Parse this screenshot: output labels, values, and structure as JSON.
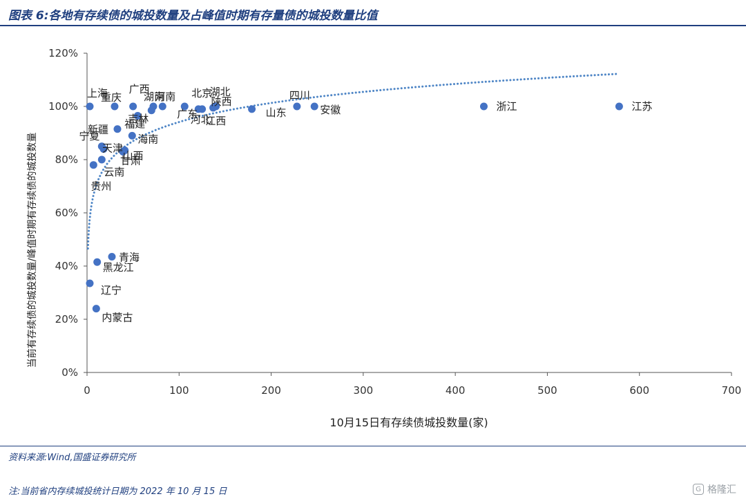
{
  "figure": {
    "title": "图表 6:各地有存续债的城投数量及占峰值时期有存量债的城投数量比值",
    "source": "资料来源:Wind,国盛证券研究所",
    "note": "注:当前省内存续城投统计日期为 2022 年 10 月 15 日",
    "watermark": "格隆汇"
  },
  "colors": {
    "marker": "#4472C4",
    "trend": "#4F86C6",
    "accent": "#1f3f7f"
  },
  "icons": {
    "watermark": "gelonghui-logo-icon"
  },
  "chart_data": {
    "type": "scatter",
    "xlabel": "10月15日有存续债城投数量(家)",
    "ylabel": "当前有存续债的城投数量/峰值时期有存续债的城投数量",
    "xlim": [
      0,
      700
    ],
    "ylim": [
      0,
      1.2
    ],
    "x_ticks": [
      "0",
      "100",
      "200",
      "300",
      "400",
      "500",
      "600",
      "700"
    ],
    "y_ticks": [
      "0%",
      "20%",
      "40%",
      "60%",
      "80%",
      "100%",
      "120%"
    ],
    "grid": false,
    "legend": "none",
    "trendline": {
      "style": "dotted",
      "kind": "logarithmic",
      "x_range": [
        1,
        578
      ]
    },
    "points": [
      {
        "label": "上海",
        "x": 3,
        "y": 1.0
      },
      {
        "label": "重庆",
        "x": 30,
        "y": 1.0
      },
      {
        "label": "广西",
        "x": 50,
        "y": 1.0
      },
      {
        "label": "湖南",
        "x": 72,
        "y": 1.0
      },
      {
        "label": "河南",
        "x": 82,
        "y": 1.0
      },
      {
        "label": "北京",
        "x": 106,
        "y": 1.0
      },
      {
        "label": "湖北",
        "x": 140,
        "y": 1.0
      },
      {
        "label": "陕西",
        "x": 137,
        "y": 0.995
      },
      {
        "label": "广东",
        "x": 121,
        "y": 0.99
      },
      {
        "label": "河北",
        "x": 125,
        "y": 0.99
      },
      {
        "label": "江西",
        "x": 139,
        "y": 1.0
      },
      {
        "label": "吉林",
        "x": 70,
        "y": 0.985
      },
      {
        "label": "福建",
        "x": 55,
        "y": 0.965
      },
      {
        "label": "新疆",
        "x": 33,
        "y": 0.915
      },
      {
        "label": "海南",
        "x": 49,
        "y": 0.89
      },
      {
        "label": "宁夏",
        "x": 16,
        "y": 0.85
      },
      {
        "label": "天津",
        "x": 18,
        "y": 0.84
      },
      {
        "label": "山西",
        "x": 41,
        "y": 0.835
      },
      {
        "label": "甘肃",
        "x": 39,
        "y": 0.83
      },
      {
        "label": "云南",
        "x": 16,
        "y": 0.8
      },
      {
        "label": "贵州",
        "x": 7,
        "y": 0.78
      },
      {
        "label": "山东",
        "x": 179,
        "y": 0.99
      },
      {
        "label": "四川",
        "x": 228,
        "y": 1.0
      },
      {
        "label": "安徽",
        "x": 247,
        "y": 1.0
      },
      {
        "label": "浙江",
        "x": 431,
        "y": 1.0
      },
      {
        "label": "江苏",
        "x": 578,
        "y": 1.0
      },
      {
        "label": "青海",
        "x": 27,
        "y": 0.435
      },
      {
        "label": "黑龙江",
        "x": 11,
        "y": 0.415
      },
      {
        "label": "辽宁",
        "x": 3,
        "y": 0.335
      },
      {
        "label": "内蒙古",
        "x": 10,
        "y": 0.24
      }
    ]
  }
}
